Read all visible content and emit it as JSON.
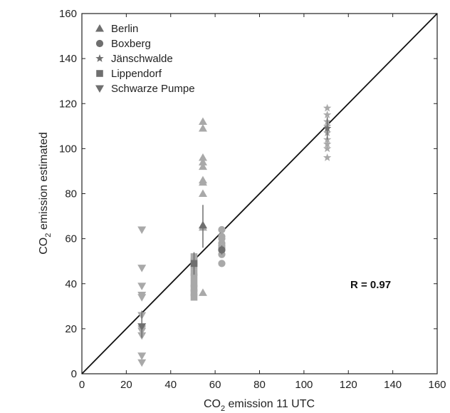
{
  "chart_data": {
    "type": "scatter",
    "xlabel": {
      "main": "CO",
      "sub": "2",
      "rest": " emission 11 UTC"
    },
    "ylabel": {
      "main": "CO",
      "sub": "2",
      "rest": " emission estimated"
    },
    "xlim": [
      0,
      160
    ],
    "ylim": [
      0,
      160
    ],
    "xticks": [
      0,
      20,
      40,
      60,
      80,
      100,
      120,
      140,
      160
    ],
    "yticks": [
      0,
      20,
      40,
      60,
      80,
      100,
      120,
      140,
      160
    ],
    "grid": false,
    "legend_position": "top-left",
    "reference_line": {
      "from": [
        0,
        0
      ],
      "to": [
        160,
        160
      ]
    },
    "annotation": "R = 0.97",
    "colors": {
      "points": "#a9a9a9",
      "means": "#6f6f6f",
      "line": "#111111"
    },
    "series": [
      {
        "name": "Berlin",
        "marker": "triangle-up",
        "x": [
          54.5,
          54.5,
          54.5,
          54.5,
          54.5,
          54.5,
          54.5,
          54.5,
          54.5,
          54.5,
          54.5
        ],
        "y": [
          112,
          109,
          96,
          94,
          92,
          86,
          85,
          80,
          66,
          65,
          36
        ],
        "mean": {
          "x": 54.5,
          "y": 66,
          "err_low": 56,
          "err_high": 75
        }
      },
      {
        "name": "Boxberg",
        "marker": "circle",
        "x": [
          63,
          63,
          63,
          63,
          63,
          63,
          63,
          63,
          63
        ],
        "y": [
          64,
          61,
          60,
          58,
          57,
          56,
          55,
          53,
          49
        ],
        "mean": {
          "x": 63,
          "y": 55,
          "err_low": 53,
          "err_high": 57
        }
      },
      {
        "name": "Jänschwalde",
        "marker": "star",
        "x": [
          110.5,
          110.5,
          110.5,
          110.5,
          110.5,
          110.5,
          110.5,
          110.5,
          110.5
        ],
        "y": [
          118,
          115,
          112,
          110,
          107,
          104,
          102,
          100,
          96
        ],
        "mean": {
          "x": 110.5,
          "y": 109,
          "err_low": 104,
          "err_high": 114
        }
      },
      {
        "name": "Lippendorf",
        "marker": "square",
        "x": [
          50.5,
          50.5,
          50.5,
          50.5,
          50.5,
          50.5,
          50.5,
          50.5,
          50.5
        ],
        "y": [
          52,
          50,
          48,
          45,
          43,
          40,
          38,
          36,
          34
        ],
        "mean": {
          "x": 50.5,
          "y": 49,
          "err_low": 44,
          "err_high": 54
        }
      },
      {
        "name": "Schwarze Pumpe",
        "marker": "triangle-down",
        "x": [
          27,
          27,
          27,
          27,
          27,
          27,
          27,
          27,
          27,
          27,
          27
        ],
        "y": [
          64,
          47,
          39,
          35,
          34,
          26,
          19,
          17,
          8,
          5,
          20
        ],
        "mean": {
          "x": 27,
          "y": 21,
          "err_low": 16,
          "err_high": 28
        }
      }
    ]
  }
}
